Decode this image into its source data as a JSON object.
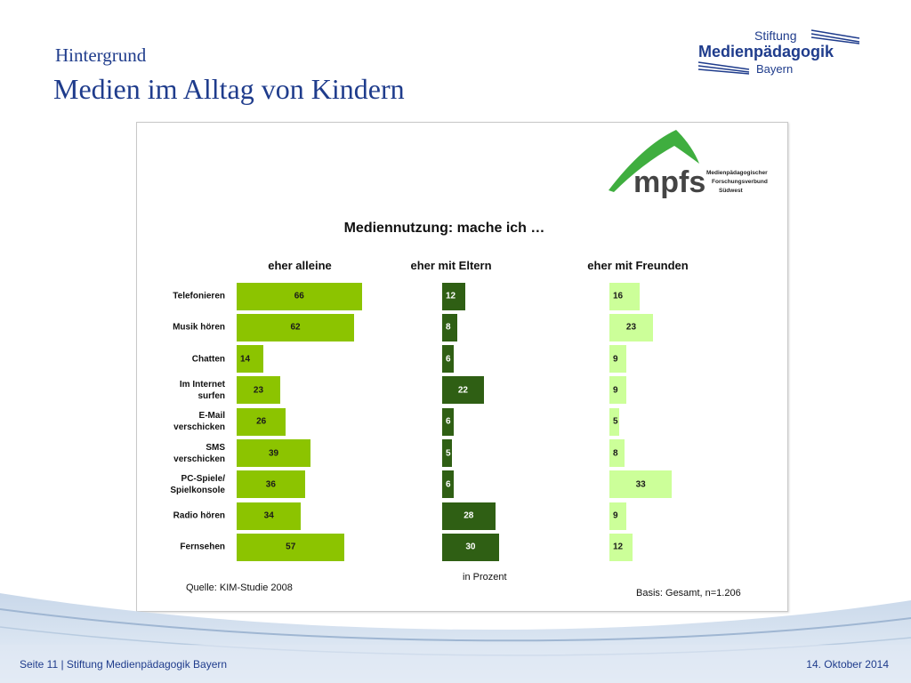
{
  "header": {
    "subtitle": "Hintergrund",
    "title": "Medien im Alltag von Kindern"
  },
  "logo": {
    "line1": "Stiftung",
    "line2": "Medienpädagogik",
    "line3": "Bayern"
  },
  "mpfs_logo": {
    "mark": "mpfs",
    "line1": "Medienpädagogischer",
    "line2": "Forschungsverbund",
    "line3": "Südwest"
  },
  "chart_data": {
    "type": "bar",
    "orientation": "horizontal",
    "title": "Mediennutzung: mache ich …",
    "categories": [
      "Telefonieren",
      "Musik hören",
      "Chatten",
      "Im Internet\nsurfen",
      "E-Mail\nverschicken",
      "SMS\nverschicken",
      "PC-Spiele/\nSpielkonsole",
      "Radio hören",
      "Fernsehen"
    ],
    "series": [
      {
        "name": "eher alleine",
        "values": [
          66,
          62,
          14,
          23,
          26,
          39,
          36,
          34,
          57
        ],
        "color": "#8cc400",
        "label_color": "#1a1a1a"
      },
      {
        "name": "eher mit Eltern",
        "values": [
          12,
          8,
          6,
          22,
          6,
          5,
          6,
          28,
          30
        ],
        "color": "#2f5f14",
        "label_color": "#ffffff"
      },
      {
        "name": "eher mit Freunden",
        "values": [
          16,
          23,
          9,
          9,
          5,
          8,
          33,
          9,
          12
        ],
        "color": "#ccff99",
        "label_color": "#1a1a1a"
      }
    ],
    "unit_note": "in Prozent",
    "source": "Quelle: KIM-Studie 2008",
    "basis": "Basis: Gesamt, n=1.206"
  },
  "footer": {
    "left": "Seite 11 | Stiftung Medienpädagogik Bayern",
    "right": "14. Oktober 2014"
  }
}
